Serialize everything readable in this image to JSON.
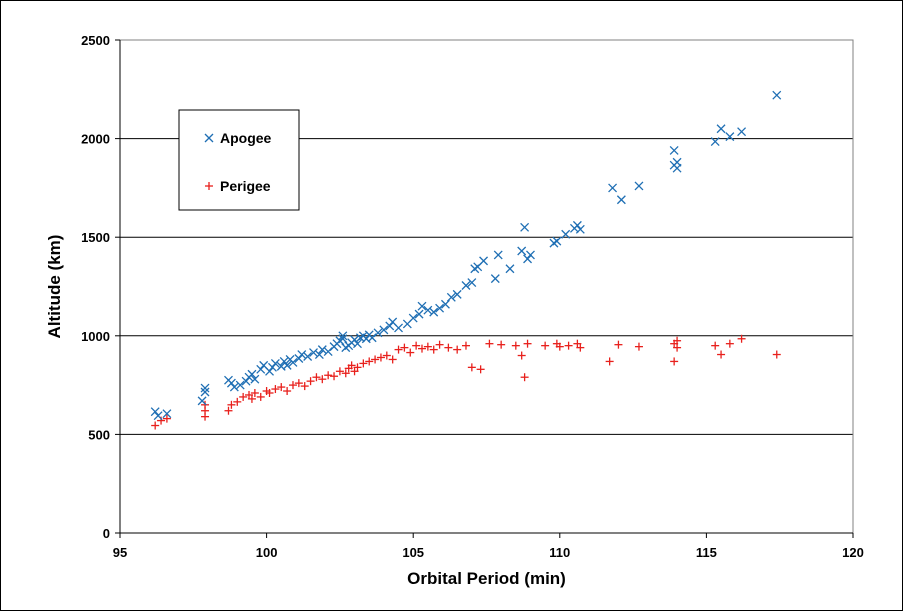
{
  "chart_data": {
    "type": "scatter",
    "xlabel": "Orbital Period  (min)",
    "ylabel": "Altitude  (km)",
    "xlim": [
      95,
      120
    ],
    "ylim": [
      0,
      2500
    ],
    "xticks": [
      95,
      100,
      105,
      110,
      115,
      120
    ],
    "yticks": [
      0,
      500,
      1000,
      1500,
      2000,
      2500
    ],
    "grid": "horizontal major gridlines",
    "legend_position": "upper-left",
    "series": [
      {
        "name": "Apogee",
        "marker": "x",
        "color": "#1F6FB4",
        "points": [
          [
            96.2,
            615
          ],
          [
            96.3,
            595
          ],
          [
            96.6,
            605
          ],
          [
            97.9,
            715
          ],
          [
            97.9,
            735
          ],
          [
            97.8,
            670
          ],
          [
            98.7,
            775
          ],
          [
            98.8,
            760
          ],
          [
            98.9,
            740
          ],
          [
            99.1,
            750
          ],
          [
            99.3,
            770
          ],
          [
            99.4,
            790
          ],
          [
            99.5,
            805
          ],
          [
            99.6,
            780
          ],
          [
            99.8,
            830
          ],
          [
            99.9,
            850
          ],
          [
            100.1,
            820
          ],
          [
            100.2,
            840
          ],
          [
            100.3,
            860
          ],
          [
            100.5,
            845
          ],
          [
            100.6,
            870
          ],
          [
            100.7,
            850
          ],
          [
            100.8,
            880
          ],
          [
            100.9,
            865
          ],
          [
            101.1,
            885
          ],
          [
            101.2,
            905
          ],
          [
            101.4,
            895
          ],
          [
            101.6,
            915
          ],
          [
            101.8,
            905
          ],
          [
            101.9,
            930
          ],
          [
            102.1,
            920
          ],
          [
            102.3,
            945
          ],
          [
            102.4,
            960
          ],
          [
            102.5,
            975
          ],
          [
            102.6,
            985
          ],
          [
            102.6,
            1000
          ],
          [
            102.7,
            940
          ],
          [
            102.8,
            950
          ],
          [
            102.9,
            965
          ],
          [
            103.0,
            980
          ],
          [
            103.1,
            960
          ],
          [
            103.2,
            990
          ],
          [
            103.3,
            1000
          ],
          [
            103.4,
            985
          ],
          [
            103.5,
            1005
          ],
          [
            103.6,
            990
          ],
          [
            103.8,
            1015
          ],
          [
            104.0,
            1030
          ],
          [
            104.2,
            1050
          ],
          [
            104.3,
            1070
          ],
          [
            104.5,
            1040
          ],
          [
            104.8,
            1060
          ],
          [
            105.0,
            1090
          ],
          [
            105.2,
            1110
          ],
          [
            105.3,
            1150
          ],
          [
            105.5,
            1130
          ],
          [
            105.7,
            1120
          ],
          [
            105.9,
            1140
          ],
          [
            106.1,
            1160
          ],
          [
            106.3,
            1195
          ],
          [
            106.5,
            1210
          ],
          [
            106.8,
            1255
          ],
          [
            107.0,
            1270
          ],
          [
            107.1,
            1340
          ],
          [
            107.2,
            1350
          ],
          [
            107.4,
            1380
          ],
          [
            107.8,
            1290
          ],
          [
            107.9,
            1410
          ],
          [
            108.3,
            1340
          ],
          [
            108.7,
            1430
          ],
          [
            108.8,
            1550
          ],
          [
            108.9,
            1390
          ],
          [
            109.0,
            1410
          ],
          [
            109.8,
            1470
          ],
          [
            109.9,
            1480
          ],
          [
            110.2,
            1515
          ],
          [
            110.5,
            1545
          ],
          [
            110.6,
            1560
          ],
          [
            110.7,
            1540
          ],
          [
            111.8,
            1750
          ],
          [
            112.1,
            1690
          ],
          [
            112.7,
            1760
          ],
          [
            113.9,
            1865
          ],
          [
            113.9,
            1940
          ],
          [
            114.0,
            1850
          ],
          [
            114.0,
            1880
          ],
          [
            115.3,
            1985
          ],
          [
            115.5,
            2050
          ],
          [
            115.8,
            2010
          ],
          [
            116.2,
            2035
          ],
          [
            117.4,
            2220
          ]
        ]
      },
      {
        "name": "Perigee",
        "marker": "+",
        "color": "#E8201C",
        "points": [
          [
            96.2,
            545
          ],
          [
            96.4,
            570
          ],
          [
            96.6,
            580
          ],
          [
            97.9,
            590
          ],
          [
            97.9,
            620
          ],
          [
            97.9,
            650
          ],
          [
            98.7,
            620
          ],
          [
            98.8,
            650
          ],
          [
            99.0,
            665
          ],
          [
            99.2,
            690
          ],
          [
            99.4,
            700
          ],
          [
            99.5,
            680
          ],
          [
            99.6,
            710
          ],
          [
            99.8,
            690
          ],
          [
            100.0,
            720
          ],
          [
            100.1,
            710
          ],
          [
            100.3,
            730
          ],
          [
            100.5,
            740
          ],
          [
            100.7,
            720
          ],
          [
            100.9,
            750
          ],
          [
            101.1,
            760
          ],
          [
            101.3,
            745
          ],
          [
            101.5,
            770
          ],
          [
            101.7,
            790
          ],
          [
            101.9,
            780
          ],
          [
            102.1,
            800
          ],
          [
            102.3,
            795
          ],
          [
            102.5,
            820
          ],
          [
            102.7,
            810
          ],
          [
            102.8,
            835
          ],
          [
            102.9,
            850
          ],
          [
            103.0,
            820
          ],
          [
            103.1,
            840
          ],
          [
            103.3,
            860
          ],
          [
            103.5,
            870
          ],
          [
            103.7,
            880
          ],
          [
            103.9,
            890
          ],
          [
            104.1,
            900
          ],
          [
            104.3,
            880
          ],
          [
            104.5,
            930
          ],
          [
            104.7,
            940
          ],
          [
            104.9,
            915
          ],
          [
            105.1,
            950
          ],
          [
            105.3,
            935
          ],
          [
            105.5,
            945
          ],
          [
            105.7,
            930
          ],
          [
            105.9,
            955
          ],
          [
            106.2,
            940
          ],
          [
            106.5,
            930
          ],
          [
            106.8,
            950
          ],
          [
            107.0,
            840
          ],
          [
            107.3,
            830
          ],
          [
            107.6,
            960
          ],
          [
            108.0,
            955
          ],
          [
            108.5,
            950
          ],
          [
            108.7,
            900
          ],
          [
            108.8,
            790
          ],
          [
            108.9,
            960
          ],
          [
            109.5,
            950
          ],
          [
            109.9,
            960
          ],
          [
            110.0,
            945
          ],
          [
            110.3,
            950
          ],
          [
            110.6,
            960
          ],
          [
            110.7,
            940
          ],
          [
            111.7,
            870
          ],
          [
            112.0,
            955
          ],
          [
            112.7,
            945
          ],
          [
            113.9,
            960
          ],
          [
            113.9,
            870
          ],
          [
            114.0,
            975
          ],
          [
            114.0,
            940
          ],
          [
            115.3,
            950
          ],
          [
            115.5,
            905
          ],
          [
            115.8,
            960
          ],
          [
            116.2,
            985
          ],
          [
            117.4,
            905
          ]
        ]
      }
    ]
  }
}
